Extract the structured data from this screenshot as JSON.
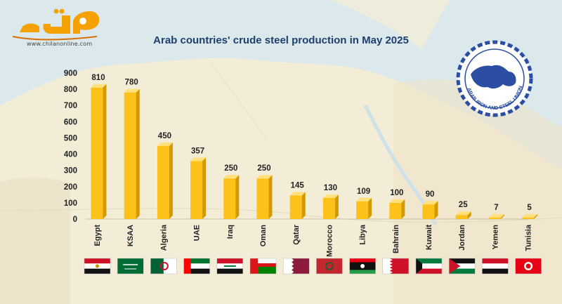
{
  "header": {
    "site_url": "www.chilanonline.com"
  },
  "emblem": {
    "text": "ARAB IRON AND STEEL UNION",
    "color": "#2b4ea2"
  },
  "colors": {
    "bar": "#fdc219",
    "bar_side": "#d39a00",
    "bar_top": "#ffe07a",
    "map_land": "#f3ecd6",
    "map_water": "#dbe9ec",
    "axis_text": "#222222",
    "title": "#1e3f6d",
    "logo": "#f5a100"
  },
  "chart_data": {
    "type": "bar",
    "title": "Arab countries' crude steel production in May 2025",
    "xlabel": "",
    "ylabel": "",
    "categories": [
      "Egypt",
      "KSAA",
      "Algeria",
      "UAE",
      "Iraq",
      "Oman",
      "Qatar",
      "Morocco",
      "Libya",
      "Bahrain",
      "Kuwait",
      "Jordan",
      "Yemen",
      "Tunisia"
    ],
    "values": [
      810,
      780,
      450,
      357,
      250,
      250,
      145,
      130,
      109,
      100,
      90,
      25,
      7,
      5
    ],
    "data_labels": [
      "810",
      "780",
      "450",
      "357",
      "250",
      "250",
      "145",
      "130",
      "109",
      "100",
      "90",
      "25",
      "7",
      "5"
    ],
    "ylim": [
      0,
      900
    ],
    "yticks": [
      "0",
      "100",
      "200",
      "300",
      "400",
      "500",
      "600",
      "700",
      "800",
      "900"
    ],
    "grid": false,
    "legend": "none"
  }
}
